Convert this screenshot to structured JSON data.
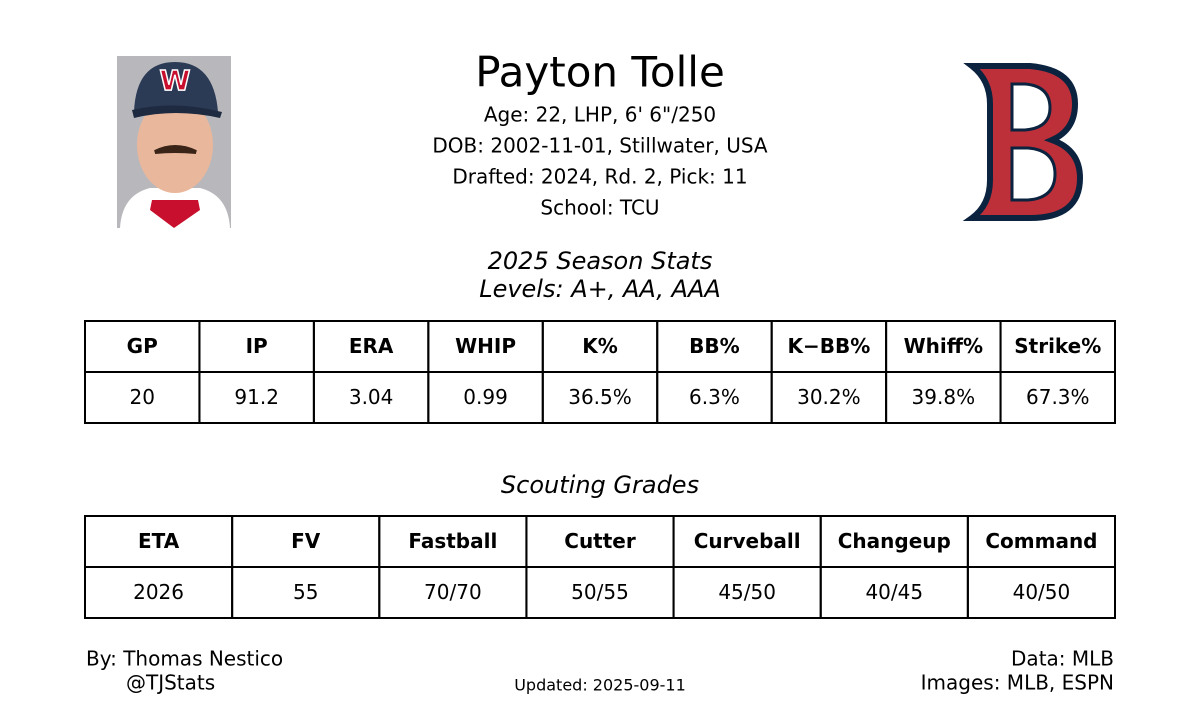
{
  "header": {
    "name": "Payton Tolle",
    "bio": [
      "Age: 22, LHP, 6' 6\"/250",
      "DOB: 2002-11-01, Stillwater, USA",
      "Drafted: 2024, Rd. 2, Pick: 11",
      "School: TCU"
    ]
  },
  "stats": {
    "title": "2025 Season Stats",
    "subtitle": "Levels: A+, AA, AAA",
    "columns": [
      "GP",
      "IP",
      "ERA",
      "WHIP",
      "K%",
      "BB%",
      "K−BB%",
      "Whiff%",
      "Strike%"
    ],
    "rows": [
      [
        "20",
        "91.2",
        "3.04",
        "0.99",
        "36.5%",
        "6.3%",
        "30.2%",
        "39.8%",
        "67.3%"
      ]
    ]
  },
  "grades": {
    "title": "Scouting Grades",
    "columns": [
      "ETA",
      "FV",
      "Fastball",
      "Cutter",
      "Curveball",
      "Changeup",
      "Command"
    ],
    "rows": [
      [
        "2026",
        "55",
        "70/70",
        "50/55",
        "45/50",
        "40/45",
        "40/50"
      ]
    ]
  },
  "footer": {
    "author": "By: Thomas Nestico",
    "handle": "@TJStats",
    "updated": "Updated: 2025-09-11",
    "source": "Data: MLB",
    "images": "Images: MLB, ESPN"
  }
}
